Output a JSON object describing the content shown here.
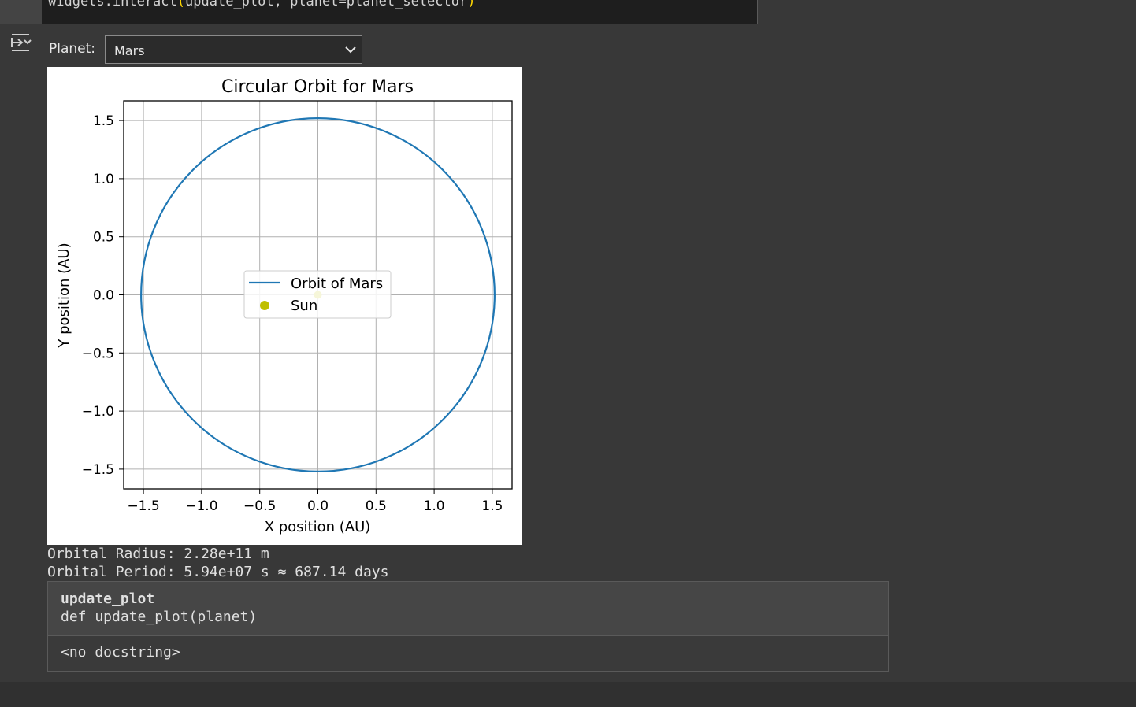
{
  "code_cell": {
    "line_prefix": "widgets.interact",
    "line_open": "(",
    "line_args": "update_plot, planet=planet_selector",
    "line_close": ")"
  },
  "widget": {
    "label": "Planet:",
    "selected": "Mars"
  },
  "chart_data": {
    "type": "line",
    "title": "Circular Orbit for Mars",
    "xlabel": "X position (AU)",
    "ylabel": "Y position (AU)",
    "xlim": [
      -1.67,
      1.67
    ],
    "ylim": [
      -1.67,
      1.67
    ],
    "xticks": [
      -1.5,
      -1.0,
      -0.5,
      0.0,
      0.5,
      1.0,
      1.5
    ],
    "yticks": [
      -1.5,
      -1.0,
      -0.5,
      0.0,
      0.5,
      1.0,
      1.5
    ],
    "xtick_labels": [
      "−1.5",
      "−1.0",
      "−0.5",
      "0.0",
      "0.5",
      "1.0",
      "1.5"
    ],
    "ytick_labels": [
      "−1.5",
      "−1.0",
      "−0.5",
      "0.0",
      "0.5",
      "1.0",
      "1.5"
    ],
    "grid": true,
    "legend_position": "center",
    "series": [
      {
        "name": "Orbit of Mars",
        "kind": "circle",
        "center": [
          0,
          0
        ],
        "radius": 1.52,
        "color": "#1f77b4"
      },
      {
        "name": "Sun",
        "kind": "point",
        "x": 0,
        "y": 0,
        "color": "#bfbf00"
      }
    ]
  },
  "stdout": {
    "line1": "Orbital Radius: 2.28e+11 m",
    "line2": "Orbital Period: 5.94e+07 s ≈ 687.14 days"
  },
  "tooltip": {
    "name": "update_plot",
    "signature": "def update_plot(planet)",
    "docstring": "<no docstring>"
  },
  "colors": {
    "background": "#383838",
    "orbit": "#1f77b4",
    "sun": "#bfbf00"
  }
}
